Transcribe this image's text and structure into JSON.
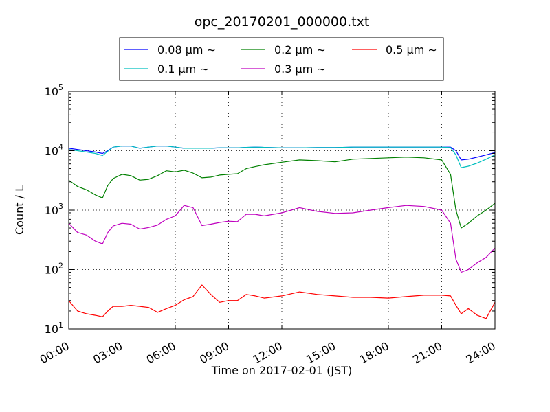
{
  "chart_data": {
    "type": "line",
    "title": "opc_20170201_000000.txt",
    "xlabel": "Time on 2017-02-01 (JST)",
    "ylabel": "Count / L",
    "yscale": "log",
    "xlim": [
      "2017-02-01T00:00",
      "2017-02-02T00:00"
    ],
    "ylim": [
      10,
      100000
    ],
    "x_ticks": [
      "00:00",
      "03:00",
      "06:00",
      "09:00",
      "12:00",
      "15:00",
      "18:00",
      "21:00",
      "24:00"
    ],
    "y_ticks": [
      {
        "value": 10,
        "base": "10",
        "exp": "1"
      },
      {
        "value": 100,
        "base": "10",
        "exp": "2"
      },
      {
        "value": 1000,
        "base": "10",
        "exp": "3"
      },
      {
        "value": 10000,
        "base": "10",
        "exp": "4"
      },
      {
        "value": 100000,
        "base": "10",
        "exp": "5"
      }
    ],
    "grid": true,
    "legend_position": "top",
    "x_hours": [
      0,
      0.5,
      1,
      1.5,
      1.9,
      2.2,
      2.5,
      3,
      3.5,
      4,
      4.5,
      5,
      5.5,
      6,
      6.5,
      7,
      7.5,
      8,
      8.5,
      9,
      9.5,
      10,
      10.5,
      11,
      12,
      13,
      14,
      15,
      16,
      17,
      18,
      19,
      20,
      21,
      21.5,
      21.8,
      22.1,
      22.5,
      23,
      23.5,
      24
    ],
    "series": [
      {
        "name": "0.08 μm ∼",
        "color": "#0000ff",
        "values": [
          11000,
          10500,
          10000,
          9500,
          9000,
          10000,
          11500,
          12000,
          12000,
          11000,
          11500,
          12000,
          12000,
          11500,
          11000,
          11000,
          11000,
          11000,
          11200,
          11200,
          11200,
          11400,
          11500,
          11400,
          11200,
          11200,
          11300,
          11300,
          11500,
          11500,
          11500,
          11500,
          11500,
          11500,
          11500,
          10000,
          7000,
          7200,
          7800,
          8500,
          9300
        ]
      },
      {
        "name": "0.1 μm ∼",
        "color": "#00bfbf",
        "values": [
          10500,
          10000,
          9500,
          9000,
          8300,
          9800,
          11500,
          12000,
          12000,
          11000,
          11500,
          12000,
          12000,
          11500,
          11000,
          11000,
          11000,
          11000,
          11200,
          11200,
          11200,
          11400,
          11500,
          11400,
          11200,
          11200,
          11300,
          11300,
          11500,
          11500,
          11500,
          11500,
          11500,
          11500,
          11300,
          8500,
          5200,
          5500,
          6200,
          7200,
          8500
        ]
      },
      {
        "name": "0.2 μm ∼",
        "color": "#008000",
        "values": [
          3200,
          2500,
          2200,
          1800,
          1600,
          2600,
          3400,
          4000,
          3800,
          3200,
          3300,
          3800,
          4600,
          4400,
          4700,
          4200,
          3500,
          3600,
          3900,
          4000,
          4100,
          5000,
          5400,
          5800,
          6400,
          7000,
          6800,
          6500,
          7200,
          7400,
          7600,
          7800,
          7600,
          7000,
          4000,
          1000,
          500,
          600,
          800,
          1000,
          1300
        ]
      },
      {
        "name": "0.3 μm ∼",
        "color": "#bf00bf",
        "values": [
          600,
          420,
          380,
          300,
          270,
          420,
          540,
          600,
          580,
          480,
          510,
          560,
          700,
          800,
          1200,
          1100,
          550,
          580,
          620,
          650,
          640,
          850,
          850,
          800,
          900,
          1100,
          950,
          880,
          900,
          1000,
          1100,
          1200,
          1150,
          1000,
          600,
          150,
          90,
          100,
          130,
          160,
          230
        ]
      },
      {
        "name": "0.5 μm ∼",
        "color": "#ff0000",
        "values": [
          30,
          20,
          18,
          17,
          16,
          20,
          24,
          24,
          25,
          24,
          23,
          19,
          22,
          25,
          31,
          35,
          55,
          38,
          28,
          30,
          30,
          38,
          36,
          33,
          36,
          42,
          38,
          36,
          34,
          34,
          33,
          35,
          37,
          37,
          36,
          25,
          18,
          22,
          17,
          15,
          28
        ]
      }
    ]
  }
}
